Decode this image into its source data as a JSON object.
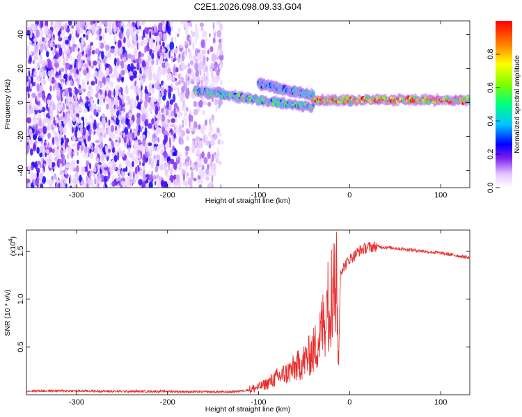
{
  "title": "C2E1.2026.098.09.33.G04",
  "chart_data": [
    {
      "type": "heatmap",
      "title": "C2E1.2026.098.09.33.G04",
      "xlabel": "Height of straight line (km)",
      "ylabel": "Frequency (Hz)",
      "xlim": [
        -355,
        132
      ],
      "ylim": [
        -50,
        48
      ],
      "x_ticks": [
        -300,
        -200,
        -100,
        0,
        100
      ],
      "x_tick_labels": [
        "-300",
        "-200",
        "-100",
        "0",
        "100"
      ],
      "y_ticks": [
        -40,
        -20,
        0,
        20,
        40
      ],
      "y_tick_labels": [
        "-40",
        "-20",
        "0",
        "20",
        "40"
      ],
      "colorbar": {
        "label": "Normalized spectral amplitude",
        "range": [
          0,
          1
        ],
        "ticks": [
          0,
          0.2,
          0.4,
          0.6,
          0.8
        ],
        "tick_labels": [
          "0.0",
          "0.2",
          "0.4",
          "0.6",
          "0.8"
        ]
      },
      "features": [
        {
          "name": "noise",
          "x": [
            -355,
            -140
          ],
          "y": [
            -50,
            48
          ],
          "amplitude": 0.15
        },
        {
          "name": "signal-lower",
          "x": [
            -170,
            -40
          ],
          "y_start": 7,
          "y_end": -3,
          "amplitude": 0.5
        },
        {
          "name": "signal-upper",
          "x": [
            -100,
            -40
          ],
          "y_start": 11,
          "y_end": 4,
          "amplitude": 0.45
        },
        {
          "name": "signal-tail",
          "x": [
            -40,
            132
          ],
          "y_start": 1.5,
          "y_end": 1.5,
          "amplitude": 0.85
        }
      ]
    },
    {
      "type": "line",
      "xlabel": "Height of straight line (km)",
      "ylabel": "SNR (10 * v/v)",
      "y_scale_label": "(x10",
      "y_scale_exp": "4",
      "xlim": [
        -355,
        132
      ],
      "ylim": [
        0,
        1.72
      ],
      "x_ticks": [
        -300,
        -200,
        -100,
        0,
        100
      ],
      "x_tick_labels": [
        "-300",
        "-200",
        "-100",
        "0",
        "100"
      ],
      "y_ticks": [
        0.5,
        1.0,
        1.5
      ],
      "y_tick_labels": [
        "0.5",
        "1.0",
        "1.5"
      ],
      "series": [
        {
          "name": "SNR",
          "color": "#e8302e",
          "x": [
            -355,
            -300,
            -250,
            -200,
            -160,
            -130,
            -110,
            -100,
            -90,
            -80,
            -70,
            -60,
            -50,
            -40,
            -35,
            -30,
            -25,
            -20,
            -15,
            -12,
            -10,
            -5,
            0,
            5,
            10,
            20,
            30,
            40,
            60,
            80,
            100,
            120,
            132
          ],
          "y": [
            0.04,
            0.04,
            0.035,
            0.035,
            0.03,
            0.03,
            0.05,
            0.08,
            0.12,
            0.18,
            0.22,
            0.28,
            0.35,
            0.45,
            0.55,
            0.7,
            0.9,
            1.05,
            1.2,
            0.4,
            1.3,
            1.35,
            1.42,
            1.45,
            1.5,
            1.54,
            1.55,
            1.54,
            1.52,
            1.5,
            1.48,
            1.45,
            1.43
          ]
        }
      ]
    }
  ]
}
